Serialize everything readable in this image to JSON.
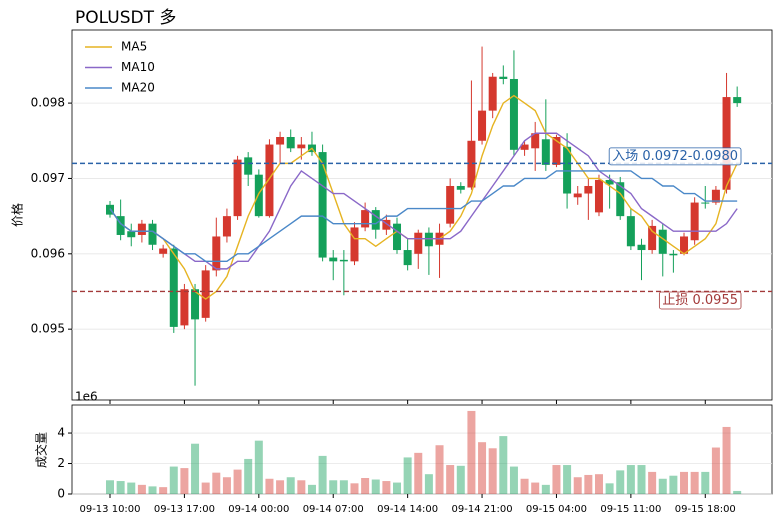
{
  "chart_data": [
    {
      "type": "candlestick",
      "title": "POLUSDT  多",
      "ylabel": "价格",
      "categories": [
        "09-13 10:00",
        null,
        null,
        null,
        null,
        null,
        null,
        "09-13 17:00",
        null,
        null,
        null,
        null,
        null,
        null,
        "09-14 00:00",
        null,
        null,
        null,
        null,
        null,
        null,
        "09-14 07:00",
        null,
        null,
        null,
        null,
        null,
        null,
        "09-14 14:00",
        null,
        null,
        null,
        null,
        null,
        null,
        "09-14 21:00",
        null,
        null,
        null,
        null,
        null,
        null,
        "09-15 04:00",
        null,
        null,
        null,
        null,
        null,
        null,
        "09-15 11:00",
        null,
        null,
        null,
        null,
        null,
        null,
        "09-15 18:00",
        null,
        null,
        null
      ],
      "open": [
        0.09665,
        0.0965,
        0.0963,
        0.09625,
        0.0964,
        0.096,
        0.09607,
        0.09505,
        0.09553,
        0.09515,
        0.09578,
        0.09623,
        0.0965,
        0.09728,
        0.09705,
        0.0965,
        0.09745,
        0.09755,
        0.0974,
        0.09745,
        0.09735,
        0.09595,
        0.09592,
        0.0959,
        0.09635,
        0.09658,
        0.09632,
        0.0964,
        0.09605,
        0.096,
        0.09628,
        0.09612,
        0.0964,
        0.0969,
        0.09688,
        0.0975,
        0.0979,
        0.09835,
        0.09832,
        0.09738,
        0.0974,
        0.09752,
        0.09718,
        0.09742,
        0.09675,
        0.0968,
        0.09655,
        0.09698,
        0.09695,
        0.0965,
        0.09612,
        0.09605,
        0.09632,
        0.096,
        0.096,
        0.09618,
        0.09668,
        0.09668,
        0.09685,
        0.09808
      ],
      "high": [
        0.0967,
        0.09672,
        0.0964,
        0.09645,
        0.09645,
        0.09612,
        0.09612,
        0.0956,
        0.0956,
        0.09585,
        0.09648,
        0.0966,
        0.0973,
        0.09735,
        0.09712,
        0.09752,
        0.09762,
        0.09765,
        0.09755,
        0.09762,
        0.09745,
        0.09605,
        0.09605,
        0.09642,
        0.09668,
        0.09662,
        0.09652,
        0.09648,
        0.0962,
        0.09632,
        0.09635,
        0.0964,
        0.097,
        0.09695,
        0.0983,
        0.09875,
        0.0984,
        0.0985,
        0.0987,
        0.0975,
        0.09775,
        0.09805,
        0.09758,
        0.0976,
        0.0969,
        0.097,
        0.09705,
        0.09705,
        0.09702,
        0.0966,
        0.0962,
        0.09645,
        0.0964,
        0.09605,
        0.09628,
        0.09675,
        0.0969,
        0.0969,
        0.0984,
        0.09822
      ],
      "low": [
        0.09648,
        0.09618,
        0.0961,
        0.09615,
        0.09605,
        0.09595,
        0.09495,
        0.095,
        0.09425,
        0.0951,
        0.0957,
        0.09615,
        0.09645,
        0.0969,
        0.09648,
        0.09648,
        0.0972,
        0.09735,
        0.09725,
        0.0973,
        0.0959,
        0.09565,
        0.09545,
        0.09585,
        0.0963,
        0.0962,
        0.09625,
        0.096,
        0.09578,
        0.0958,
        0.09572,
        0.09568,
        0.09635,
        0.0968,
        0.09685,
        0.09745,
        0.0978,
        0.09825,
        0.0973,
        0.0973,
        0.0971,
        0.0971,
        0.09715,
        0.0966,
        0.09665,
        0.09645,
        0.0965,
        0.0966,
        0.09645,
        0.09605,
        0.09565,
        0.096,
        0.0957,
        0.09575,
        0.09598,
        0.09612,
        0.0966,
        0.09665,
        0.0968,
        0.09795
      ],
      "close": [
        0.09652,
        0.09625,
        0.09622,
        0.0964,
        0.09612,
        0.09607,
        0.09503,
        0.09553,
        0.09513,
        0.09578,
        0.09623,
        0.0965,
        0.09725,
        0.09705,
        0.0965,
        0.09745,
        0.09755,
        0.0974,
        0.09745,
        0.09735,
        0.09595,
        0.0959,
        0.0959,
        0.09635,
        0.09658,
        0.09632,
        0.09645,
        0.09605,
        0.09585,
        0.09628,
        0.0961,
        0.09628,
        0.0969,
        0.09685,
        0.0975,
        0.0979,
        0.09835,
        0.09832,
        0.09738,
        0.09745,
        0.0976,
        0.09718,
        0.09755,
        0.0968,
        0.0968,
        0.0969,
        0.09698,
        0.09692,
        0.0965,
        0.0961,
        0.09605,
        0.09637,
        0.096,
        0.09598,
        0.09623,
        0.09668,
        0.09667,
        0.09685,
        0.09808,
        0.098
      ],
      "up_color": "#d5382e",
      "down_color": "#14a05a",
      "series": [
        {
          "name": "MA5",
          "color": "#e6b422",
          "values": [
            0.0966,
            0.0964,
            0.0963,
            0.0963,
            0.0963,
            0.0962,
            0.096,
            0.0958,
            0.0955,
            0.0954,
            0.0955,
            0.0957,
            0.0961,
            0.0965,
            0.0968,
            0.097,
            0.0972,
            0.0972,
            0.0973,
            0.0974,
            0.0972,
            0.0968,
            0.0964,
            0.0962,
            0.0962,
            0.0961,
            0.0962,
            0.0963,
            0.0962,
            0.0962,
            0.0962,
            0.0962,
            0.0963,
            0.0965,
            0.0968,
            0.0973,
            0.0977,
            0.098,
            0.0981,
            0.098,
            0.0979,
            0.0976,
            0.0975,
            0.0974,
            0.0972,
            0.097,
            0.097,
            0.0969,
            0.0968,
            0.0966,
            0.0965,
            0.0963,
            0.0962,
            0.0961,
            0.096,
            0.0961,
            0.0962,
            0.0964,
            0.0969,
            0.0972
          ]
        },
        {
          "name": "MA10",
          "color": "#8a68c8",
          "values": [
            0.0966,
            0.0964,
            0.0963,
            0.0963,
            0.0963,
            0.0962,
            0.0961,
            0.096,
            0.0959,
            0.0959,
            0.0958,
            0.0958,
            0.0959,
            0.0959,
            0.0961,
            0.0963,
            0.0966,
            0.0969,
            0.0971,
            0.097,
            0.0969,
            0.0968,
            0.0968,
            0.0967,
            0.0966,
            0.0965,
            0.0964,
            0.0963,
            0.0962,
            0.0962,
            0.0962,
            0.0962,
            0.0962,
            0.0963,
            0.0965,
            0.0967,
            0.0969,
            0.0971,
            0.0973,
            0.0975,
            0.0976,
            0.0976,
            0.0976,
            0.0975,
            0.0974,
            0.0973,
            0.0971,
            0.097,
            0.0969,
            0.0968,
            0.0966,
            0.0965,
            0.0964,
            0.0963,
            0.0963,
            0.0963,
            0.0963,
            0.0963,
            0.0964,
            0.0966
          ]
        },
        {
          "name": "MA20",
          "color": "#4a88c8",
          "values": [
            0.0966,
            0.0964,
            0.0963,
            0.0963,
            0.0963,
            0.0962,
            0.0961,
            0.096,
            0.096,
            0.0959,
            0.0959,
            0.0959,
            0.096,
            0.096,
            0.0961,
            0.0962,
            0.0963,
            0.0964,
            0.0965,
            0.0965,
            0.0965,
            0.0964,
            0.0964,
            0.0964,
            0.0964,
            0.0964,
            0.0965,
            0.0965,
            0.0966,
            0.0966,
            0.0966,
            0.0966,
            0.0966,
            0.0966,
            0.0967,
            0.0967,
            0.0968,
            0.0969,
            0.0969,
            0.097,
            0.097,
            0.097,
            0.0971,
            0.0971,
            0.0971,
            0.0971,
            0.0971,
            0.0971,
            0.0971,
            0.0971,
            0.097,
            0.097,
            0.0969,
            0.0969,
            0.0968,
            0.0968,
            0.0967,
            0.0967,
            0.0967,
            0.0967
          ]
        }
      ],
      "hlines": [
        {
          "value": 0.0972,
          "color": "#2a62a8",
          "label": "入场 0.0972-0.0980"
        },
        {
          "value": 0.0955,
          "color": "#a33a3a",
          "label": "止损 0.0955"
        }
      ],
      "ylim": [
        0.09406,
        0.09897
      ],
      "yticks": [
        0.095,
        0.096,
        0.097,
        0.098
      ],
      "legend": "upper left"
    },
    {
      "type": "bar",
      "ylabel": "成交量",
      "y_offset_label": "1e6",
      "values": [
        0.9,
        0.85,
        0.75,
        0.6,
        0.5,
        0.45,
        1.8,
        1.7,
        3.3,
        0.75,
        1.4,
        1.1,
        1.6,
        2.3,
        3.5,
        1.0,
        0.9,
        1.1,
        0.9,
        0.6,
        2.5,
        0.9,
        0.9,
        0.7,
        1.05,
        0.95,
        0.85,
        0.75,
        2.4,
        2.7,
        1.3,
        3.2,
        1.9,
        1.85,
        5.45,
        3.4,
        3.0,
        3.8,
        1.8,
        1.0,
        0.75,
        0.6,
        1.9,
        1.9,
        1.1,
        1.25,
        1.3,
        0.7,
        1.55,
        1.9,
        1.9,
        1.45,
        1.0,
        1.2,
        1.45,
        1.45,
        1.45,
        3.05,
        4.4,
        0.2
      ],
      "ylim": [
        0,
        5.84
      ],
      "yticks": [
        0,
        2,
        4
      ]
    }
  ]
}
